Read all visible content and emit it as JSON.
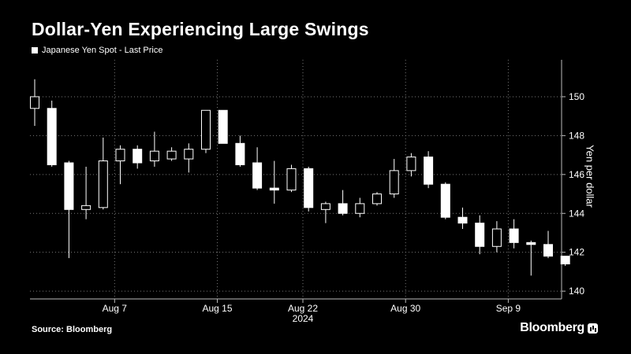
{
  "title": "Dollar-Yen Experiencing Large Swings",
  "legend_label": "Japanese Yen Spot - Last Price",
  "source": "Source: Bloomberg",
  "brand": "Bloomberg",
  "chart_data": {
    "type": "candlestick",
    "title": "Dollar-Yen Experiencing Large Swings",
    "series_name": "Japanese Yen Spot - Last Price",
    "ylabel": "Yen per dollar",
    "xlabel": "",
    "year_label": "2024",
    "ylim": [
      139.6,
      151.9
    ],
    "yticks": [
      140,
      142,
      144,
      146,
      148,
      150
    ],
    "xticks": [
      {
        "label": "Aug 7",
        "index": 4
      },
      {
        "label": "Aug 15",
        "index": 10
      },
      {
        "label": "Aug 22",
        "index": 15
      },
      {
        "label": "Aug 30",
        "index": 21
      },
      {
        "label": "Sep 9",
        "index": 27
      }
    ],
    "grid": true,
    "candles": [
      {
        "open": 149.4,
        "high": 150.9,
        "low": 148.5,
        "close": 150.0
      },
      {
        "open": 149.4,
        "high": 149.8,
        "low": 146.4,
        "close": 146.5
      },
      {
        "open": 146.6,
        "high": 146.7,
        "low": 141.7,
        "close": 144.2
      },
      {
        "open": 144.2,
        "high": 146.4,
        "low": 143.7,
        "close": 144.4
      },
      {
        "open": 144.3,
        "high": 147.9,
        "low": 144.2,
        "close": 146.7
      },
      {
        "open": 146.7,
        "high": 147.5,
        "low": 145.5,
        "close": 147.3
      },
      {
        "open": 147.3,
        "high": 147.5,
        "low": 146.3,
        "close": 146.6
      },
      {
        "open": 146.7,
        "high": 148.2,
        "low": 146.4,
        "close": 147.2
      },
      {
        "open": 146.8,
        "high": 147.4,
        "low": 146.7,
        "close": 147.2
      },
      {
        "open": 146.8,
        "high": 147.6,
        "low": 146.1,
        "close": 147.3
      },
      {
        "open": 147.3,
        "high": 149.3,
        "low": 147.1,
        "close": 149.3
      },
      {
        "open": 149.3,
        "high": 149.3,
        "low": 147.6,
        "close": 147.6
      },
      {
        "open": 147.6,
        "high": 148.0,
        "low": 146.4,
        "close": 146.5
      },
      {
        "open": 146.6,
        "high": 147.4,
        "low": 145.2,
        "close": 145.3
      },
      {
        "open": 145.3,
        "high": 146.7,
        "low": 144.5,
        "close": 145.2
      },
      {
        "open": 145.2,
        "high": 146.5,
        "low": 145.1,
        "close": 146.3
      },
      {
        "open": 146.3,
        "high": 146.4,
        "low": 144.1,
        "close": 144.3
      },
      {
        "open": 144.2,
        "high": 144.6,
        "low": 143.5,
        "close": 144.5
      },
      {
        "open": 144.5,
        "high": 145.2,
        "low": 143.9,
        "close": 144.0
      },
      {
        "open": 144.0,
        "high": 144.8,
        "low": 143.8,
        "close": 144.5
      },
      {
        "open": 144.5,
        "high": 145.1,
        "low": 144.4,
        "close": 145.0
      },
      {
        "open": 145.0,
        "high": 146.8,
        "low": 144.8,
        "close": 146.2
      },
      {
        "open": 146.2,
        "high": 147.1,
        "low": 145.9,
        "close": 146.9
      },
      {
        "open": 146.9,
        "high": 147.2,
        "low": 145.3,
        "close": 145.5
      },
      {
        "open": 145.5,
        "high": 145.6,
        "low": 143.7,
        "close": 143.8
      },
      {
        "open": 143.8,
        "high": 144.3,
        "low": 143.2,
        "close": 143.5
      },
      {
        "open": 143.5,
        "high": 143.9,
        "low": 141.9,
        "close": 142.3
      },
      {
        "open": 142.3,
        "high": 143.6,
        "low": 142.0,
        "close": 143.2
      },
      {
        "open": 143.2,
        "high": 143.7,
        "low": 142.2,
        "close": 142.5
      },
      {
        "open": 142.5,
        "high": 142.6,
        "low": 140.8,
        "close": 142.4
      },
      {
        "open": 142.4,
        "high": 143.1,
        "low": 141.7,
        "close": 141.8
      },
      {
        "open": 141.8,
        "high": 141.8,
        "low": 141.3,
        "close": 141.4
      }
    ]
  }
}
